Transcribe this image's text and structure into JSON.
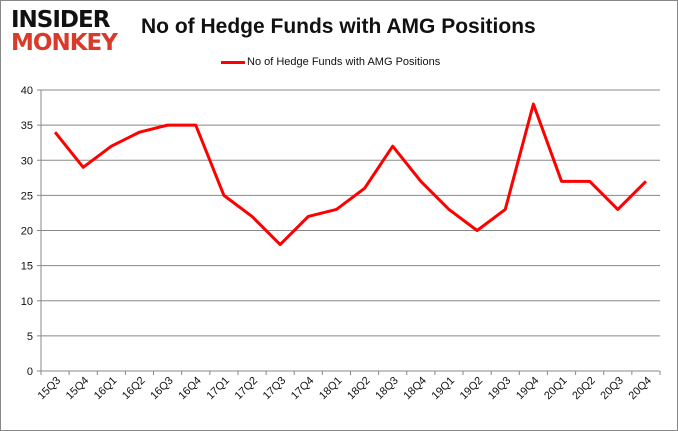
{
  "logo": {
    "line1": "INSIDER",
    "line2": "MONKEY"
  },
  "chart_data": {
    "type": "line",
    "title": "No of Hedge Funds with AMG Positions",
    "categories": [
      "15Q3",
      "15Q4",
      "16Q1",
      "16Q2",
      "16Q3",
      "16Q4",
      "17Q1",
      "17Q2",
      "17Q3",
      "17Q4",
      "18Q1",
      "18Q2",
      "18Q3",
      "18Q4",
      "19Q1",
      "19Q2",
      "19Q3",
      "19Q4",
      "20Q1",
      "20Q2",
      "20Q3",
      "20Q4"
    ],
    "series": [
      {
        "name": "No of Hedge Funds with AMG Positions",
        "color": "#ff0000",
        "values": [
          34,
          29,
          32,
          34,
          35,
          35,
          25,
          22,
          18,
          22,
          23,
          26,
          32,
          27,
          23,
          20,
          23,
          38,
          27,
          27,
          23,
          27
        ]
      }
    ],
    "yticks": [
      0,
      5,
      10,
      15,
      20,
      25,
      30,
      35,
      40
    ],
    "ylim": [
      0,
      40
    ],
    "grid": true,
    "legend": "top"
  }
}
